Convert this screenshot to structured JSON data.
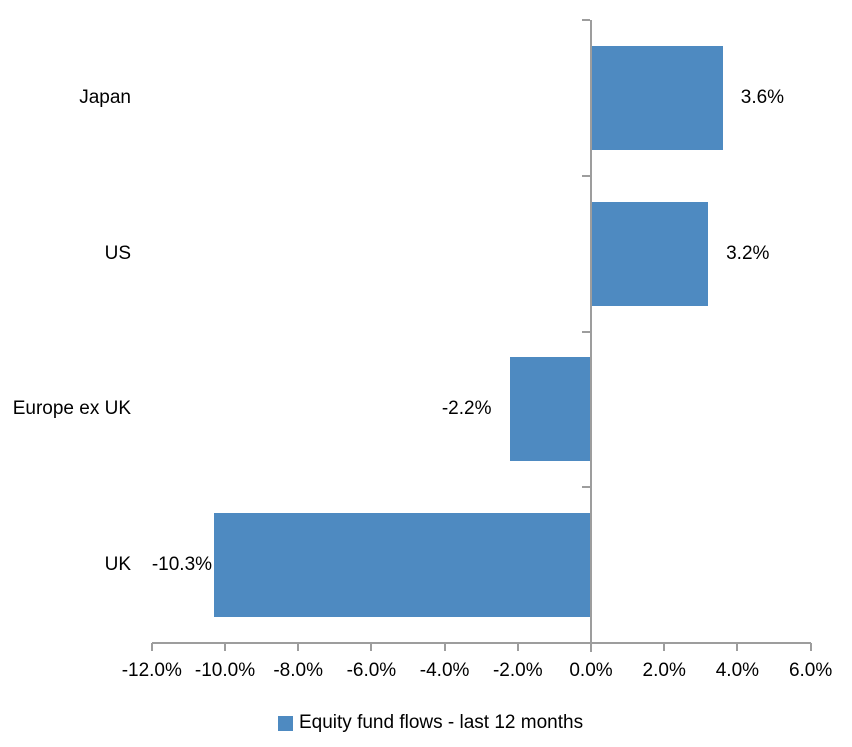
{
  "chart_data": {
    "type": "bar",
    "orientation": "horizontal",
    "title": "",
    "categories": [
      "Japan",
      "US",
      "Europe ex UK",
      "UK"
    ],
    "series": [
      {
        "name": "Equity fund flows - last 12 months",
        "values": [
          3.6,
          3.2,
          -2.2,
          -10.3
        ]
      }
    ],
    "data_labels": [
      "3.6%",
      "3.2%",
      "-2.2%",
      "-10.3%"
    ],
    "x_tick_labels": [
      "-12.0%",
      "-10.0%",
      "-8.0%",
      "-6.0%",
      "-4.0%",
      "-2.0%",
      "0.0%",
      "2.0%",
      "4.0%",
      "6.0%"
    ],
    "xlim": [
      -12,
      6
    ],
    "x_tick_step": 2,
    "grid": false,
    "legend_position": "bottom",
    "bar_color": "#4e8ac1",
    "axis_color": "#9d9d9d",
    "text_color": "#000000"
  }
}
